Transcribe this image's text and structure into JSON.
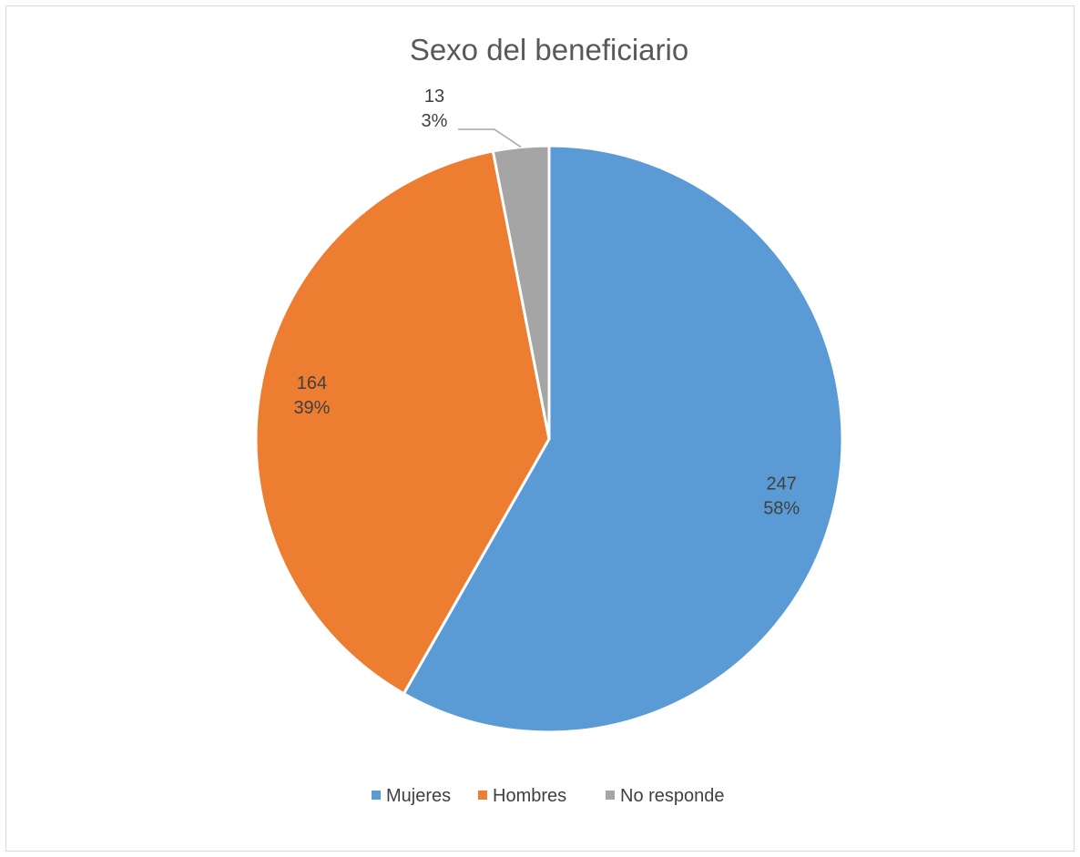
{
  "chart_data": {
    "type": "pie",
    "title": "Sexo del beneficiario",
    "slices": [
      {
        "label": "Mujeres",
        "value": 247,
        "percent": "58%",
        "color": "#5b9bd5"
      },
      {
        "label": "Hombres",
        "value": 164,
        "percent": "39%",
        "color": "#ed7d31"
      },
      {
        "label": "No responde",
        "value": 13,
        "percent": "3%",
        "color": "#a5a5a5"
      }
    ],
    "legend_position": "bottom",
    "data_labels": "value and percent"
  }
}
